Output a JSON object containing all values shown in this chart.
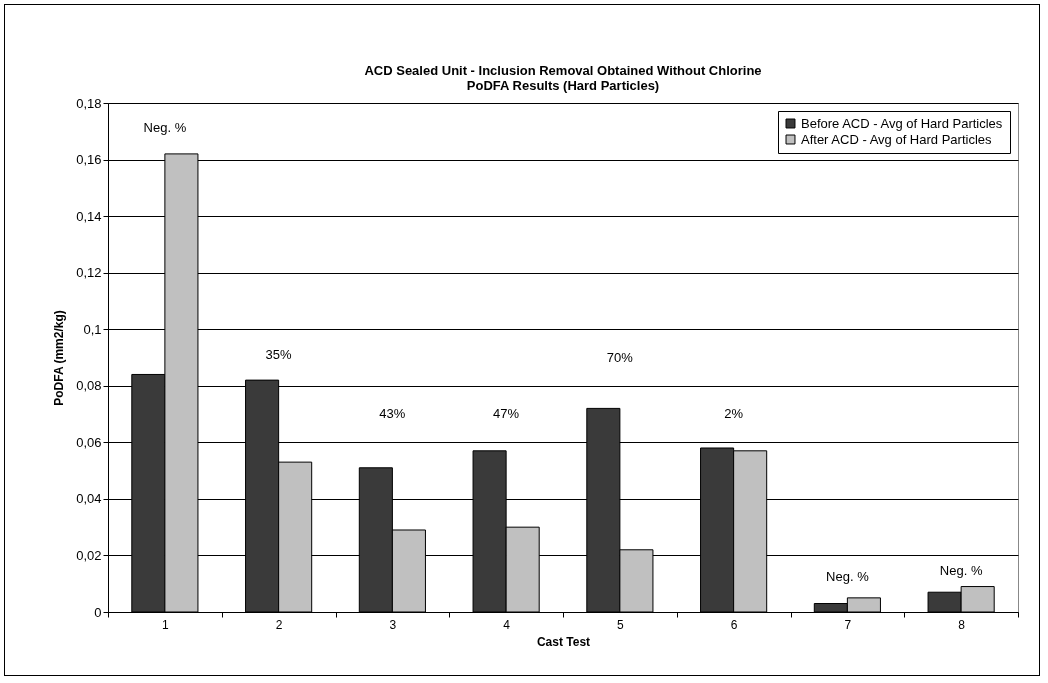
{
  "chart_data": {
    "type": "bar",
    "title": "ACD Sealed Unit - Inclusion Removal Obtained Without Chlorine",
    "subtitle": "PoDFA Results (Hard Particles)",
    "xlabel": "Cast Test",
    "ylabel": "PoDFA (mm2/kg)",
    "categories": [
      "1",
      "2",
      "3",
      "4",
      "5",
      "6",
      "7",
      "8"
    ],
    "series": [
      {
        "name": "Before ACD - Avg of Hard Particles",
        "color": "#3a3a3a",
        "values": [
          0.084,
          0.082,
          0.051,
          0.057,
          0.072,
          0.058,
          0.003,
          0.007
        ]
      },
      {
        "name": "After ACD - Avg of Hard Particles",
        "color": "#c0c0c0",
        "values": [
          0.162,
          0.053,
          0.029,
          0.03,
          0.022,
          0.057,
          0.005,
          0.009
        ]
      }
    ],
    "ylim": [
      0,
      0.18
    ],
    "yticks": [
      0,
      {
        "value": 0.02,
        "label": "0,02"
      },
      {
        "value": 0.04,
        "label": "0,04"
      },
      {
        "value": 0.06,
        "label": "0,06"
      },
      {
        "value": 0.08,
        "label": "0,08"
      },
      {
        "value": 0.1,
        "label": "0,1"
      },
      {
        "value": 0.12,
        "label": "0,12"
      },
      {
        "value": 0.14,
        "label": "0,14"
      },
      {
        "value": 0.16,
        "label": "0,16"
      },
      {
        "value": 0.18,
        "label": "0,18"
      }
    ],
    "grid": "y",
    "legend": "top right",
    "annotations": [
      "Neg. %",
      "35%",
      "43%",
      "47%",
      "70%",
      "2%",
      "Neg. %",
      "Neg. %"
    ]
  }
}
